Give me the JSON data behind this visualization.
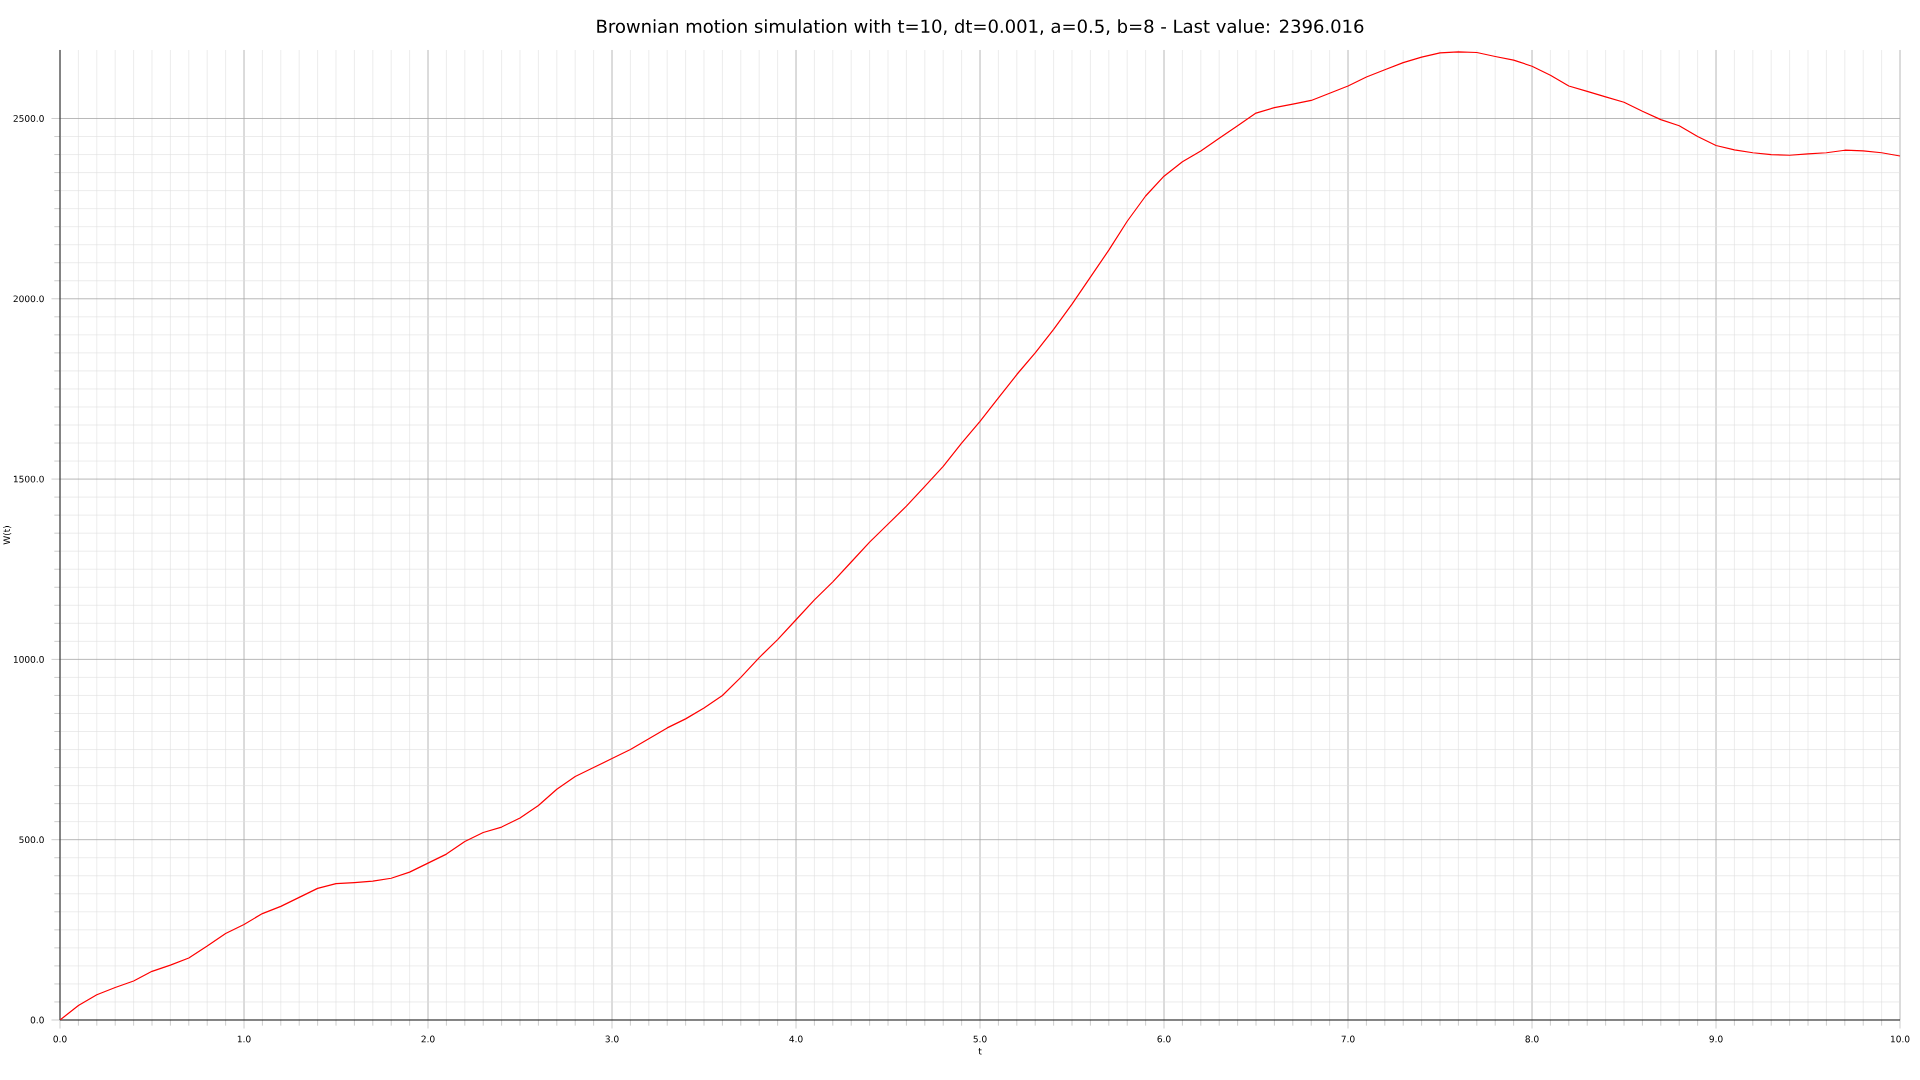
{
  "chart_data": {
    "type": "line",
    "title": "Brownian motion simulation with t=10, dt=0.001, a=0.5, b=8 - Last value: 2396.016",
    "xlabel": "t",
    "ylabel": "W(t)",
    "x": [
      0,
      0.1,
      0.2,
      0.3,
      0.4,
      0.5,
      0.6,
      0.7,
      0.8,
      0.9,
      1.0,
      1.1,
      1.2,
      1.3,
      1.4,
      1.5,
      1.6,
      1.7,
      1.8,
      1.9,
      2.0,
      2.1,
      2.2,
      2.3,
      2.4,
      2.5,
      2.6,
      2.7,
      2.8,
      2.9,
      3.0,
      3.1,
      3.2,
      3.3,
      3.4,
      3.5,
      3.6,
      3.7,
      3.8,
      3.9,
      4.0,
      4.1,
      4.2,
      4.3,
      4.4,
      4.5,
      4.6,
      4.7,
      4.8,
      4.9,
      5.0,
      5.1,
      5.2,
      5.3,
      5.4,
      5.5,
      5.6,
      5.7,
      5.8,
      5.9,
      6.0,
      6.1,
      6.2,
      6.3,
      6.4,
      6.5,
      6.6,
      6.7,
      6.8,
      6.9,
      7.0,
      7.1,
      7.2,
      7.3,
      7.4,
      7.5,
      7.6,
      7.7,
      7.8,
      7.9,
      8.0,
      8.1,
      8.2,
      8.3,
      8.4,
      8.5,
      8.6,
      8.7,
      8.8,
      8.9,
      9.0,
      9.1,
      9.2,
      9.3,
      9.4,
      9.5,
      9.6,
      9.7,
      9.8,
      9.9,
      10.0
    ],
    "series": [
      {
        "color": "#ff0000",
        "values": [
          0,
          40,
          70,
          90,
          108,
          135,
          152,
          172,
          205,
          240,
          265,
          295,
          315,
          340,
          365,
          378,
          381,
          385,
          393,
          410,
          435,
          460,
          495,
          520,
          535,
          560,
          595,
          640,
          675,
          700,
          725,
          750,
          780,
          810,
          835,
          865,
          900,
          950,
          1005,
          1055,
          1110,
          1165,
          1215,
          1270,
          1325,
          1375,
          1425,
          1480,
          1535,
          1600,
          1660,
          1725,
          1790,
          1850,
          1915,
          1985,
          2060,
          2135,
          2215,
          2285,
          2340,
          2380,
          2410,
          2445,
          2480,
          2515,
          2530,
          2540,
          2550,
          2570,
          2590,
          2615,
          2635,
          2655,
          2670,
          2682,
          2685,
          2683,
          2672,
          2662,
          2645,
          2620,
          2590,
          2575,
          2560,
          2545,
          2520,
          2497,
          2480,
          2450,
          2425,
          2413,
          2405,
          2400,
          2398,
          2402,
          2405,
          2412,
          2410,
          2405,
          2396
        ]
      }
    ],
    "xlim": [
      0,
      10
    ],
    "ylim": [
      0,
      2690
    ],
    "xticks": [
      {
        "value": 0,
        "label": "0.0"
      },
      {
        "value": 1,
        "label": "1.0"
      },
      {
        "value": 2,
        "label": "2.0"
      },
      {
        "value": 3,
        "label": "3.0"
      },
      {
        "value": 4,
        "label": "4.0"
      },
      {
        "value": 5,
        "label": "5.0"
      },
      {
        "value": 6,
        "label": "6.0"
      },
      {
        "value": 7,
        "label": "7.0"
      },
      {
        "value": 8,
        "label": "8.0"
      },
      {
        "value": 9,
        "label": "9.0"
      },
      {
        "value": 10,
        "label": "10.0"
      }
    ],
    "yticks": [
      {
        "value": 0,
        "label": "0.0"
      },
      {
        "value": 500,
        "label": "500.0"
      },
      {
        "value": 1000,
        "label": "1000.0"
      },
      {
        "value": 1500,
        "label": "1500.0"
      },
      {
        "value": 2000,
        "label": "2000.0"
      },
      {
        "value": 2500,
        "label": "2500.0"
      }
    ],
    "grid": true,
    "marker": "none",
    "line_style": "solid"
  }
}
